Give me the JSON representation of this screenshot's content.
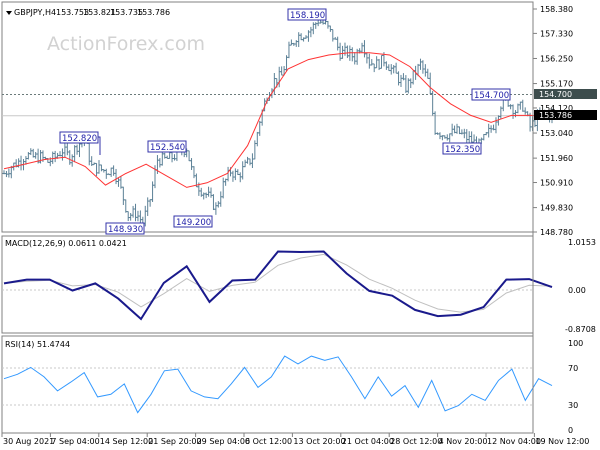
{
  "chart_data": [
    {
      "type": "ohlc",
      "title": "GBPJPY,H4",
      "ohlc_readout": [
        "153.753",
        "153.821",
        "153.735",
        "153.786"
      ],
      "watermark": "ActionForex.com",
      "ylim": [
        148.78,
        158.38
      ],
      "yticks": [
        "158.380",
        "157.330",
        "156.250",
        "155.170",
        "154.120",
        "153.040",
        "151.960",
        "150.910",
        "149.830",
        "148.780"
      ],
      "close": [
        151.3,
        151.6,
        151.8,
        152.1,
        152.0,
        152.0,
        151.8,
        152.0,
        152.3,
        152.0,
        152.5,
        152.8,
        151.6,
        151.5,
        151.4,
        151.5,
        150.6,
        149.5,
        149.6,
        149.2,
        150.2,
        151.9,
        151.9,
        152.0,
        152.2,
        152.4,
        151.0,
        150.6,
        150.3,
        149.8,
        150.8,
        151.4,
        151.2,
        151.6,
        152.0,
        153.6,
        154.7,
        155.3,
        155.5,
        156.6,
        157.2,
        157.3,
        157.5,
        157.9,
        157.7,
        157.2,
        156.5,
        156.5,
        156.3,
        157.0,
        156.1,
        156.0,
        156.2,
        155.8,
        155.4,
        155.0,
        155.5,
        156.0,
        155.3,
        153.2,
        153.0,
        153.0,
        153.1,
        152.9,
        152.7,
        152.5,
        152.9,
        153.4,
        154.3,
        154.4,
        154.0,
        154.2,
        153.3,
        153.7,
        153.9,
        153.8
      ],
      "moving_average": [
        151.5,
        151.7,
        151.9,
        152.0,
        151.6,
        150.8,
        151.3,
        151.7,
        151.2,
        150.7,
        150.9,
        151.3,
        152.5,
        154.5,
        155.8,
        156.2,
        156.4,
        156.5,
        156.5,
        156.4,
        155.9,
        155.0,
        154.3,
        153.8,
        153.5,
        153.8,
        153.8,
        153.7
      ],
      "ma_color": "#ff3333",
      "bar_color": "#5b8096",
      "horizontal_line": {
        "value": 154.7,
        "label": "154.700",
        "style": "dashed"
      },
      "current_price": {
        "value": 153.786,
        "label": "153.786"
      },
      "annotations": [
        "152.820",
        "152.540",
        "148.930",
        "149.200",
        "158.190",
        "154.700",
        "152.350"
      ]
    },
    {
      "type": "line",
      "title": "MACD(12,26,9) 0.0611 0.0421",
      "ylim": [
        -0.8708,
        1.0153
      ],
      "yticks": [
        "1.0153",
        "0.00",
        "-0.8708"
      ],
      "series": [
        {
          "values": [
            0.14,
            0.22,
            0.22,
            -0.01,
            0.14,
            -0.18,
            -0.61,
            0.15,
            0.5,
            -0.25,
            0.2,
            0.22,
            0.81,
            0.8,
            0.81,
            0.35,
            -0.02,
            -0.12,
            -0.42,
            -0.55,
            -0.52,
            -0.36,
            0.22,
            0.23,
            0.06
          ],
          "color": "#1a1a8c"
        }
      ],
      "signal_color": "#c0c0c0"
    },
    {
      "type": "line",
      "title": "RSI(14) 51.4744",
      "ylim": [
        0,
        100
      ],
      "yticks": [
        "100",
        "70",
        "30",
        "0"
      ],
      "levels": [
        70,
        30
      ],
      "series": [
        {
          "values": [
            59,
            64,
            72,
            61,
            45,
            55,
            66,
            38,
            41,
            53,
            20,
            41,
            68,
            70,
            45,
            38,
            36,
            53,
            72,
            49,
            61,
            85,
            76,
            85,
            80,
            84,
            61,
            36,
            61,
            39,
            51,
            26,
            57,
            22,
            28,
            41,
            34,
            57,
            70,
            34,
            59,
            51
          ],
          "color": "#3399ff"
        }
      ]
    }
  ],
  "x_axis": {
    "ticks": [
      "30 Aug 2021",
      "7 Sep 04:00",
      "14 Sep 12:00",
      "21 Sep 20:00",
      "29 Sep 04:00",
      "6 Oct 12:00",
      "13 Oct 20:00",
      "21 Oct 04:00",
      "28 Oct 12:00",
      "4 Nov 20:00",
      "12 Nov 04:00",
      "19 Nov 12:00"
    ]
  }
}
